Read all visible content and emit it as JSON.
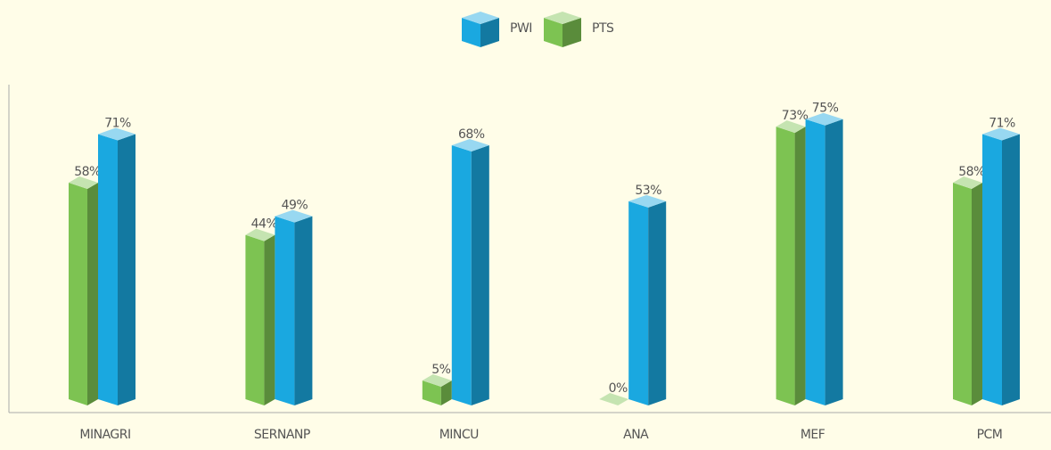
{
  "chart_data": {
    "type": "bar3d",
    "categories": [
      "MINAGRI",
      "SERNANP",
      "MINCU",
      "ANA",
      "MEF",
      "PCM"
    ],
    "series": [
      {
        "name": "PWI",
        "color": "#1aa8e0",
        "values": [
          71,
          49,
          68,
          53,
          75,
          71
        ],
        "value_labels": [
          "71%",
          "49%",
          "68%",
          "53%",
          "75%",
          "71%"
        ]
      },
      {
        "name": "PTS",
        "color": "#7dc352",
        "values": [
          58,
          44,
          5,
          0,
          73,
          58
        ],
        "value_labels": [
          "58%",
          "44%",
          "5%",
          "0%",
          "73%",
          "58%"
        ]
      }
    ],
    "ylim": [
      0,
      84
    ],
    "legend": "top"
  }
}
